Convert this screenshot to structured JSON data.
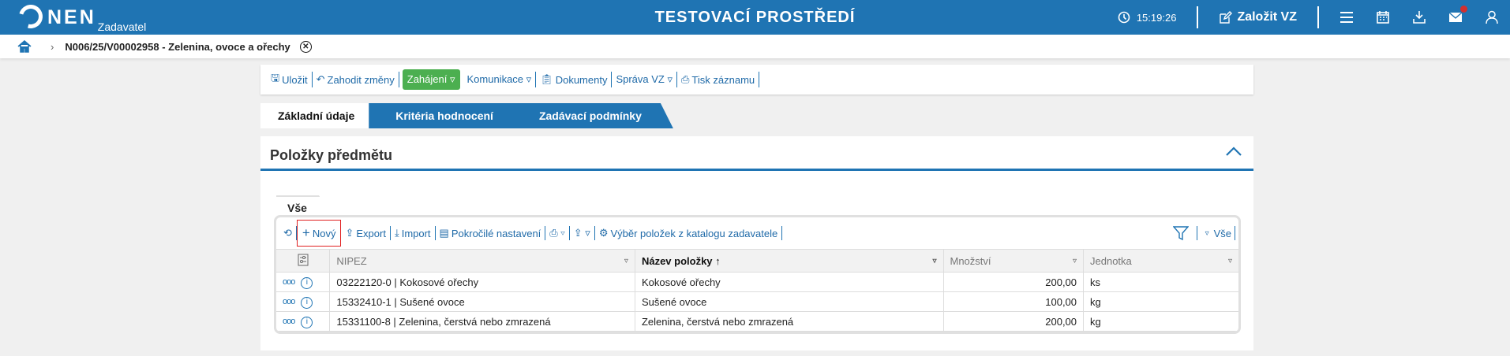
{
  "header": {
    "logo_text": "NEN",
    "logo_sub": "Zadavatel",
    "title": "TESTOVACÍ PROSTŘEDÍ",
    "time": "15:19:26",
    "create_label": "Založit VZ",
    "accent": "#1f74b3",
    "notification_color": "#d32f2f"
  },
  "breadcrumb": {
    "item": "N006/25/V00002958 - Zelenina, ovoce a ořechy"
  },
  "toolbar": {
    "save": "Uložit",
    "discard": "Zahodit změny",
    "start": "Zahájení ▿",
    "communication": "Komunikace ▿",
    "documents": "Dokumenty",
    "manage": "Správa VZ ▿",
    "print": "Tisk záznamu"
  },
  "tabs": [
    {
      "label": "Základní údaje",
      "active": true
    },
    {
      "label": "Kritéria hodnocení"
    },
    {
      "label": "Zadávací podmínky"
    }
  ],
  "panel": {
    "title": "Položky předmětu",
    "subtab": "Vše"
  },
  "grid_toolbar": {
    "new": "Nový",
    "export": "Export",
    "import": "Import",
    "advanced": "Pokročilé nastavení",
    "catalog": "Výběr položek z katalogu zadavatele",
    "filter_all": "Vše"
  },
  "table": {
    "columns": [
      "NIPEZ",
      "Název položky",
      "Množství",
      "Jednotka"
    ],
    "rows": [
      {
        "nipez": "03222120-0 | Kokosové ořechy",
        "name": "Kokosové ořechy",
        "qty": "200,00",
        "unit": "ks"
      },
      {
        "nipez": "15332410-1 | Sušené ovoce",
        "name": "Sušené ovoce",
        "qty": "100,00",
        "unit": "kg"
      },
      {
        "nipez": "15331100-8 | Zelenina, čerstvá nebo zmrazená",
        "name": "Zelenina, čerstvá nebo zmrazená",
        "qty": "200,00",
        "unit": "kg"
      }
    ]
  }
}
